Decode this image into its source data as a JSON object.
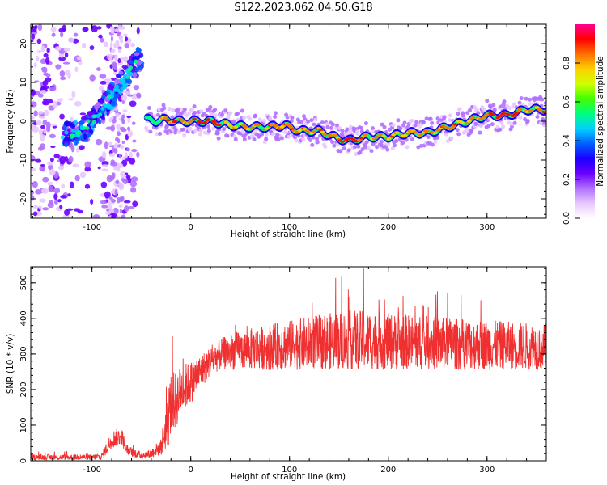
{
  "title": "S122.2023.062.04.50.G18",
  "chart_data": [
    {
      "type": "heatmap",
      "name": "spectrogram",
      "title": "S122.2023.062.04.50.G18",
      "xlabel": "Height of straight line (km)",
      "ylabel": "Frequency (Hz)",
      "xlim": [
        -162,
        360
      ],
      "ylim": [
        -25,
        25
      ],
      "xticks": [
        -100,
        0,
        100,
        200,
        300
      ],
      "yticks": [
        -20,
        -10,
        0,
        10,
        20
      ],
      "colorbar": {
        "label": "Normalized spectral amplitude",
        "range": [
          0,
          1
        ],
        "ticks": [
          "0.0",
          "0.2",
          "0.4",
          "0.6",
          "0.8"
        ],
        "colormap": [
          "#ffffff",
          "#e8c8ff",
          "#b070ff",
          "#6a00ff",
          "#1a00ff",
          "#0060ff",
          "#00d0ff",
          "#00ff80",
          "#40ff00",
          "#d0ff00",
          "#ffd000",
          "#ff7000",
          "#ff0000",
          "#ff0090"
        ]
      },
      "ridge": {
        "x": [
          -45,
          -35,
          -25,
          -15,
          0,
          20,
          40,
          60,
          80,
          95,
          110,
          130,
          150,
          160,
          180,
          200,
          220,
          240,
          260,
          280,
          300,
          320,
          340,
          360
        ],
        "freq": [
          0.5,
          0.0,
          0.5,
          0.0,
          0.0,
          0.0,
          -1.0,
          -1.5,
          -1.5,
          -1.0,
          -2.5,
          -2.5,
          -4.5,
          -5.0,
          -4.0,
          -4.0,
          -3.0,
          -3.0,
          -1.5,
          0.0,
          1.5,
          1.5,
          3.0,
          3.0
        ]
      },
      "early_streak": {
        "x": [
          -130,
          -120,
          -110,
          -100,
          -90,
          -80,
          -70,
          -60,
          -50
        ],
        "freq": [
          -3.5,
          -3.5,
          -2.5,
          0,
          3,
          6.5,
          10,
          13.5,
          17
        ]
      }
    },
    {
      "type": "line",
      "name": "snr",
      "xlabel": "Height of straight line (km)",
      "ylabel": "SNR (10 * v/v)",
      "xlim": [
        -162,
        360
      ],
      "ylim": [
        0,
        545
      ],
      "xticks": [
        -100,
        0,
        100,
        200,
        300
      ],
      "yticks": [
        0,
        100,
        200,
        300,
        400,
        500
      ],
      "color": "#f03030",
      "envelope": {
        "x": [
          -162,
          -100,
          -90,
          -80,
          -70,
          -65,
          -50,
          -40,
          -30,
          -22,
          -20,
          -15,
          -10,
          0,
          10,
          20,
          30,
          50,
          80,
          120,
          160,
          200,
          250,
          300,
          360
        ],
        "mean": [
          10,
          10,
          12,
          60,
          70,
          30,
          15,
          20,
          40,
          130,
          160,
          170,
          200,
          220,
          250,
          280,
          300,
          310,
          320,
          330,
          340,
          335,
          330,
          325,
          320
        ],
        "noise": [
          8,
          8,
          10,
          25,
          25,
          15,
          10,
          12,
          25,
          90,
          90,
          80,
          70,
          60,
          50,
          40,
          45,
          55,
          65,
          75,
          85,
          80,
          75,
          70,
          65
        ]
      },
      "peak": {
        "x": 175,
        "y": 540
      }
    }
  ]
}
